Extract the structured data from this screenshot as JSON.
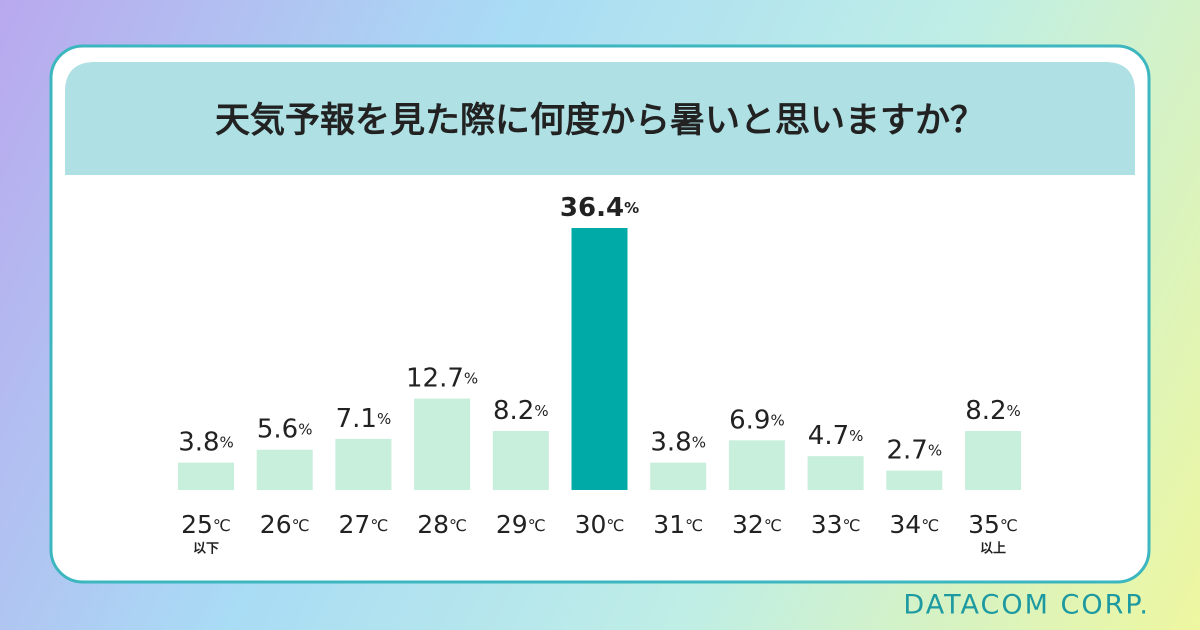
{
  "chart_data": {
    "type": "bar",
    "title": "天気予報を見た際に何度から暑いと思いますか？",
    "categories": [
      "25℃",
      "26℃",
      "27℃",
      "28℃",
      "29℃",
      "30℃",
      "31℃",
      "32℃",
      "33℃",
      "34℃",
      "35℃"
    ],
    "category_sublabels": [
      "以下",
      null,
      null,
      null,
      null,
      null,
      null,
      null,
      null,
      null,
      "以上"
    ],
    "values": [
      3.8,
      5.6,
      7.1,
      12.7,
      8.2,
      36.4,
      3.8,
      6.9,
      4.7,
      2.7,
      8.2
    ],
    "value_labels": [
      "3.8%",
      "5.6%",
      "7.1%",
      "12.7%",
      "8.2%",
      "36.4%",
      "3.8%",
      "6.9%",
      "4.7%",
      "2.7%",
      "8.2%"
    ],
    "color": "#c8eedc",
    "highlight_color": "#00aaa6",
    "highlight_index": 5
  },
  "footer": {
    "brand": "DATACOM CORP."
  }
}
